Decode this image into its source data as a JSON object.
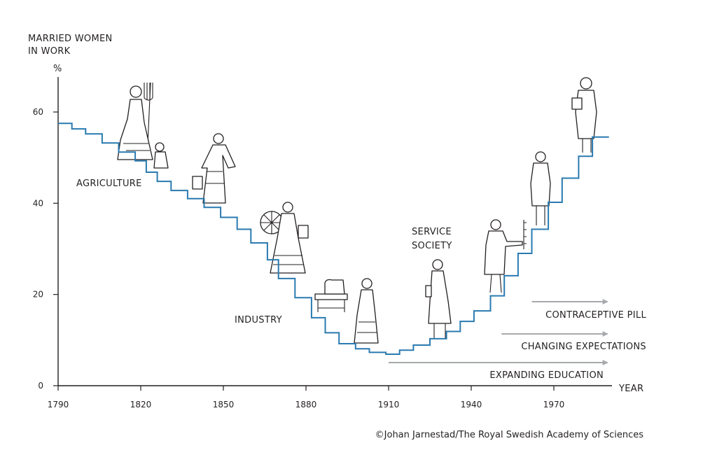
{
  "chart_data": {
    "type": "line",
    "step": true,
    "ylabel": "MARRIED WOMEN\nIN WORK",
    "yunit": "%",
    "xlabel": "YEAR",
    "xlim": [
      1790,
      1990
    ],
    "ylim": [
      0,
      68
    ],
    "yticks": [
      0,
      20,
      40,
      60
    ],
    "xticks": [
      1790,
      1820,
      1850,
      1880,
      1910,
      1940,
      1970
    ],
    "grid": false,
    "series": [
      {
        "color": "#2a7ab0",
        "points": [
          [
            1790,
            57.5
          ],
          [
            1795,
            56.3
          ],
          [
            1800,
            55.2
          ],
          [
            1806,
            53.2
          ],
          [
            1812,
            51.2
          ],
          [
            1818,
            49.3
          ],
          [
            1822,
            46.8
          ],
          [
            1826,
            44.8
          ],
          [
            1831,
            42.8
          ],
          [
            1837,
            41.0
          ],
          [
            1843,
            39.1
          ],
          [
            1849,
            36.9
          ],
          [
            1855,
            34.3
          ],
          [
            1860,
            31.3
          ],
          [
            1866,
            27.6
          ],
          [
            1870,
            23.5
          ],
          [
            1876,
            19.3
          ],
          [
            1882,
            14.9
          ],
          [
            1887,
            11.6
          ],
          [
            1892,
            9.2
          ],
          [
            1898,
            8.1
          ],
          [
            1903,
            7.3
          ],
          [
            1909,
            6.9
          ],
          [
            1914,
            7.8
          ],
          [
            1919,
            8.9
          ],
          [
            1925,
            10.3
          ],
          [
            1931,
            11.9
          ],
          [
            1936,
            14.1
          ],
          [
            1941,
            16.4
          ],
          [
            1947,
            19.7
          ],
          [
            1952,
            24.1
          ],
          [
            1957,
            29.0
          ],
          [
            1962,
            34.3
          ],
          [
            1968,
            40.2
          ],
          [
            1973,
            45.5
          ],
          [
            1979,
            50.3
          ],
          [
            1984,
            54.5
          ],
          [
            1990,
            54.5
          ]
        ]
      }
    ],
    "annotations": [
      {
        "text": "AGRICULTURE"
      },
      {
        "text": "INDUSTRY"
      },
      {
        "text": "SERVICE SOCIETY"
      }
    ],
    "arrows": [
      {
        "text": "CONTRACEPTIVE PILL",
        "from": 1962,
        "to": 1990
      },
      {
        "text": "CHANGING EXPECTATIONS",
        "from": 1951,
        "to": 1990
      },
      {
        "text": "EXPANDING EDUCATION",
        "from": 1910,
        "to": 1990
      }
    ]
  },
  "labels": {
    "ylabel_line1": "MARRIED WOMEN",
    "ylabel_line2": "IN WORK",
    "yunit": "%",
    "xlabel": "YEAR",
    "agriculture": "AGRICULTURE",
    "industry": "INDUSTRY",
    "service_line1": "SERVICE",
    "service_line2": "SOCIETY",
    "arrow_pill": "CONTRACEPTIVE PILL",
    "arrow_expectations": "CHANGING EXPECTATIONS",
    "arrow_education": "EXPANDING EDUCATION",
    "credit": "©Johan Jarnestad/The Royal Swedish Academy of Sciences"
  },
  "colors": {
    "line": "#2a7ab0",
    "axis": "#231f20",
    "arrow": "#a7a9ac"
  }
}
